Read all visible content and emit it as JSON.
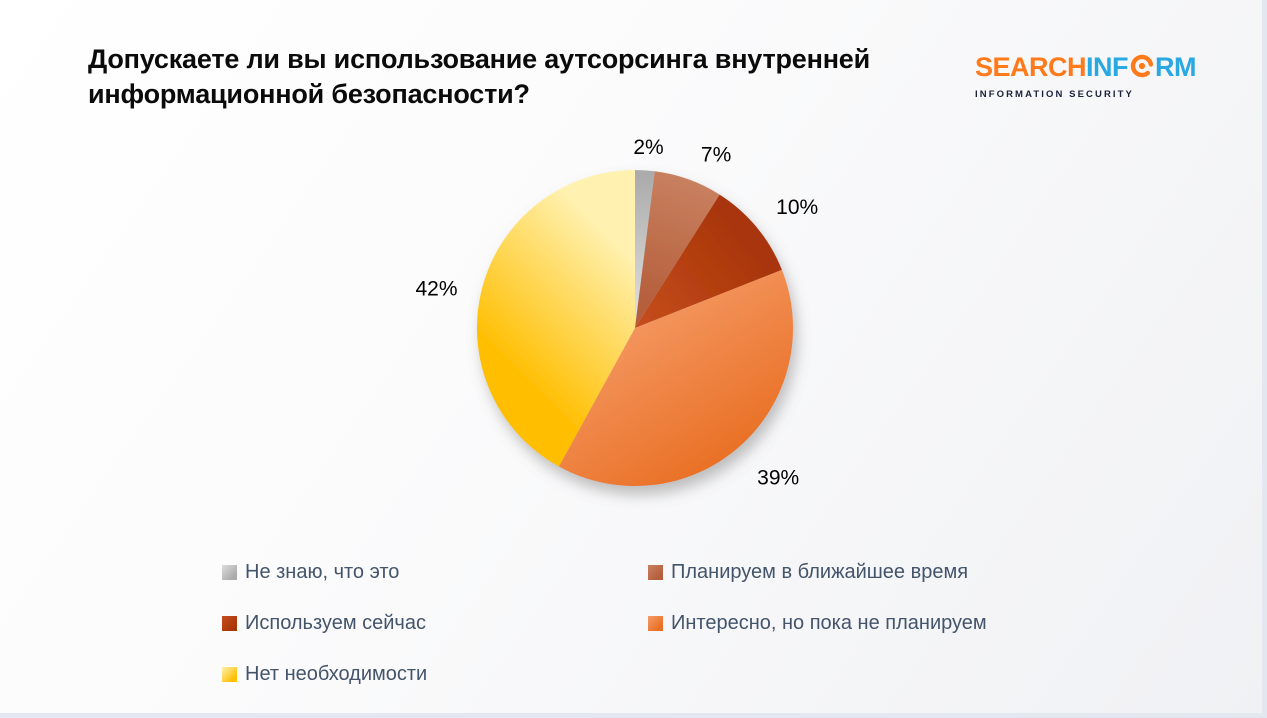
{
  "slide": {
    "title": "Допускаете ли вы использование аутсорсинга внутренней информационной безопасности?"
  },
  "logo": {
    "word_part1": "SEARCH",
    "word_part2": "INF",
    "word_part3": "RM",
    "tagline": "INFORMATION SECURITY",
    "orange": "#FF7A1B",
    "blue": "#29A8E1",
    "tagline_color": "#1A2238"
  },
  "chart_data": {
    "type": "pie",
    "title": "Допускаете ли вы использование аутсорсинга внутренней информационной безопасности?",
    "legend_position": "bottom",
    "start_angle_deg": 0,
    "direction": "clockwise",
    "slices": [
      {
        "label": "Не знаю, что это",
        "value": 2,
        "pct_label": "2%",
        "color": "#ABABAB",
        "color_light": "#DCDCDC"
      },
      {
        "label": "Планируем в ближайшее время",
        "value": 7,
        "pct_label": "7%",
        "color": "#B55E3B",
        "color_light": "#C8805F"
      },
      {
        "label": "Используем сейчас",
        "value": 10,
        "pct_label": "10%",
        "color": "#A83508",
        "color_light": "#C54D1C"
      },
      {
        "label": "Интересно, но пока не планируем",
        "value": 39,
        "pct_label": "39%",
        "color": "#E96F23",
        "color_light": "#F59C69"
      },
      {
        "label": "Нет необходимости",
        "value": 42,
        "pct_label": "42%",
        "color": "#FFBE00",
        "color_light": "#FFF1B0"
      }
    ]
  }
}
